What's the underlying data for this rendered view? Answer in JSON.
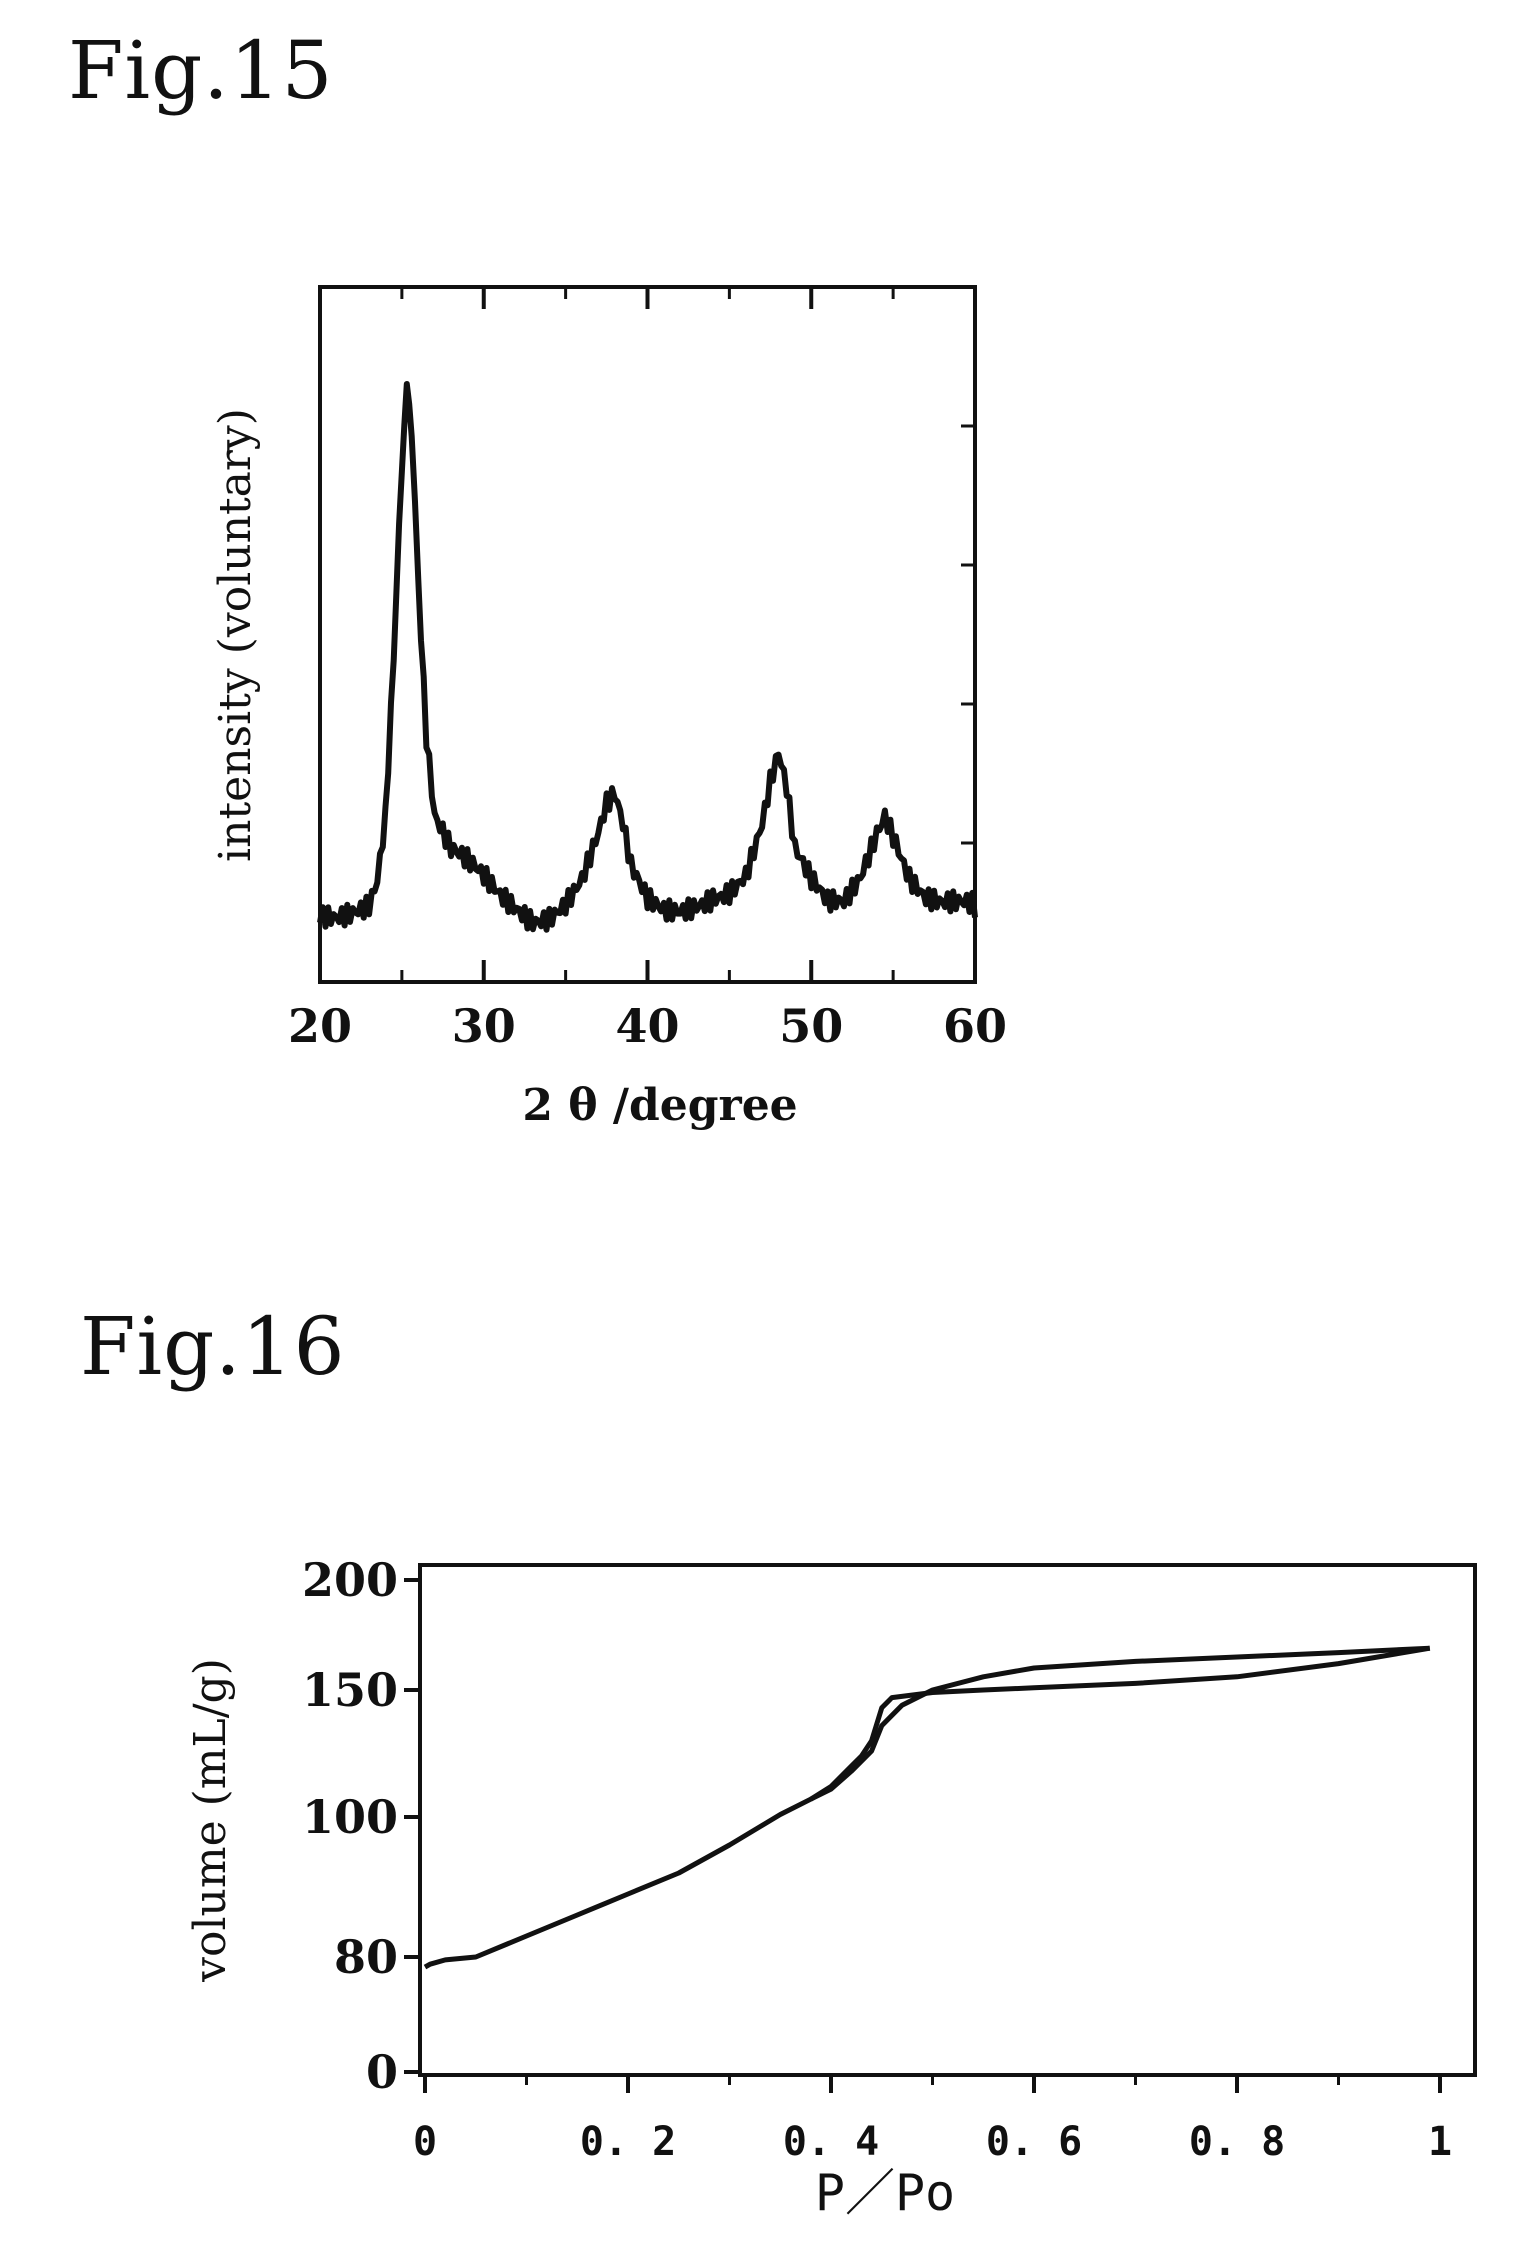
{
  "figures": {
    "fig15": {
      "label": "Fig.15"
    },
    "fig16": {
      "label": "Fig.16"
    }
  },
  "chart_data": [
    {
      "type": "line",
      "xlabel": "2 θ /degree",
      "ylabel": "intensity (voluntary)",
      "xlim": [
        20,
        60
      ],
      "ylim": [
        0,
        100
      ],
      "y_ticks_labeled": false,
      "xticks": [
        20,
        30,
        40,
        50,
        60
      ],
      "grid": false,
      "series": [
        {
          "x": [
            20,
            21,
            22,
            23,
            23.5,
            24,
            24.5,
            25,
            25.3,
            25.6,
            26,
            26.5,
            27,
            28,
            29,
            30,
            31,
            32,
            33,
            34,
            35,
            36,
            37,
            37.5,
            38,
            38.5,
            39,
            40,
            41,
            42,
            43,
            44,
            45,
            46,
            47,
            47.5,
            48,
            48.5,
            49,
            50,
            51,
            52,
            53,
            54,
            54.5,
            55,
            56,
            57,
            58,
            59,
            60
          ],
          "y": [
            6,
            7,
            9,
            11,
            15,
            25,
            50,
            80,
            88,
            82,
            60,
            35,
            22,
            16,
            14,
            12,
            10,
            9,
            8,
            9,
            11,
            14,
            20,
            24,
            25,
            20,
            13,
            8,
            7,
            8,
            10,
            12,
            13,
            15,
            22,
            28,
            32,
            26,
            16,
            11,
            8,
            9,
            14,
            22,
            25,
            22,
            15,
            11,
            9,
            8,
            7
          ]
        }
      ]
    },
    {
      "type": "line",
      "xlabel": "P／Po",
      "ylabel": "volume (mL/g)",
      "xlim": [
        0,
        1
      ],
      "xticks": [
        0,
        0.2,
        0.4,
        0.6,
        0.8,
        1
      ],
      "xtick_labels": [
        "0",
        "0. 2",
        "0. 4",
        "0. 6",
        "0. 8",
        "1"
      ],
      "yticks": [
        0,
        80,
        100,
        150,
        200
      ],
      "ytick_labels": [
        "0",
        "80",
        "100",
        "150",
        "200"
      ],
      "y_axis_note": "axis is broken between 0 and 80 (non-linear spacing)",
      "grid": false,
      "series": [
        {
          "x": [
            0,
            0.005,
            0.02,
            0.05,
            0.1,
            0.15,
            0.2,
            0.25,
            0.3,
            0.35,
            0.38,
            0.4,
            0.42,
            0.44,
            0.45,
            0.47,
            0.5,
            0.55,
            0.6,
            0.7,
            0.8,
            0.9,
            0.99
          ],
          "y": [
            73,
            75,
            78,
            80,
            83,
            86,
            89,
            92,
            96,
            101,
            107,
            111,
            118,
            126,
            136,
            144,
            150,
            156,
            160,
            163,
            165,
            167,
            169
          ]
        },
        {
          "x": [
            0.38,
            0.4,
            0.42,
            0.43,
            0.44,
            0.45,
            0.46,
            0.5,
            0.55,
            0.6,
            0.7,
            0.8,
            0.9,
            0.99
          ],
          "y": [
            107,
            112,
            120,
            124,
            130,
            143,
            147,
            149,
            150,
            151,
            153,
            156,
            162,
            169
          ]
        }
      ]
    }
  ]
}
